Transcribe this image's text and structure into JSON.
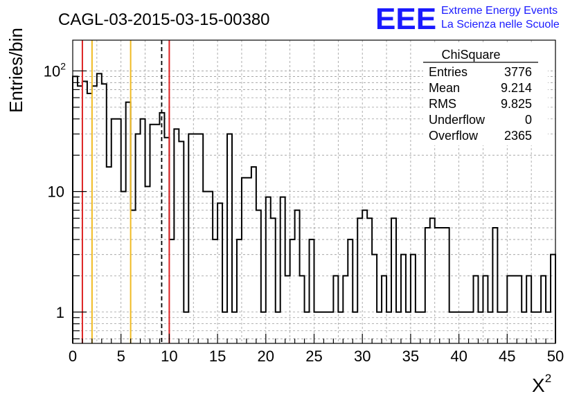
{
  "chart_data": {
    "type": "bar",
    "title": "CAGL-03-2015-03-15-00380",
    "xlabel": "X",
    "xlabel_superscript": "2",
    "ylabel": "Entries/bin",
    "xlim": [
      0,
      50
    ],
    "ylim": [
      0.55,
      180
    ],
    "y_scale": "log",
    "grid": true,
    "bin_width": 0.5,
    "x_ticks": [
      "0",
      "5",
      "10",
      "15",
      "20",
      "25",
      "30",
      "35",
      "40",
      "45",
      "50"
    ],
    "y_ticks": [
      {
        "value": 1,
        "label": "1"
      },
      {
        "value": 10,
        "label": "10"
      },
      {
        "value": 100,
        "label": "10",
        "sup": "2"
      }
    ],
    "values": [
      90,
      75,
      82,
      65,
      75,
      95,
      78,
      16,
      40,
      40,
      10,
      55,
      7,
      30,
      40,
      11,
      36,
      36,
      45,
      28,
      4,
      33,
      26,
      1,
      30,
      30,
      30,
      10,
      10,
      4,
      8,
      1,
      30,
      1,
      4,
      13,
      13,
      16,
      7,
      1,
      9,
      6,
      1,
      9,
      2,
      4,
      7,
      2,
      1,
      4,
      1,
      1,
      1,
      1,
      2,
      1,
      2,
      4,
      1,
      6,
      7,
      6,
      3,
      1,
      2,
      1,
      6,
      1,
      3,
      1,
      3,
      1,
      1,
      5,
      6,
      5,
      5,
      5,
      1,
      1,
      1,
      1,
      1,
      2,
      1,
      2,
      1,
      5,
      1,
      1,
      2,
      2,
      2,
      1,
      2,
      1,
      1,
      2,
      1,
      3
    ],
    "vertical_lines": [
      {
        "x": 1,
        "color": "#dd2222",
        "style": "solid"
      },
      {
        "x": 2,
        "color": "#f0bb22",
        "style": "solid"
      },
      {
        "x": 6,
        "color": "#f0bb22",
        "style": "solid"
      },
      {
        "x": 9.214,
        "color": "#000000",
        "style": "dashed"
      },
      {
        "x": 10,
        "color": "#dd2222",
        "style": "solid"
      }
    ],
    "stats": {
      "title": "ChiSquare",
      "rows": [
        {
          "label": "Entries",
          "value": "3776"
        },
        {
          "label": "Mean",
          "value": "9.214"
        },
        {
          "label": "RMS",
          "value": "9.825"
        },
        {
          "label": "Underflow",
          "value": "0"
        },
        {
          "label": "Overflow",
          "value": "2365"
        }
      ]
    }
  },
  "logo": {
    "letters": "EEE",
    "line1": "Extreme Energy Events",
    "line2": "La Scienza nelle Scuole",
    "color": "#1a1aff"
  }
}
